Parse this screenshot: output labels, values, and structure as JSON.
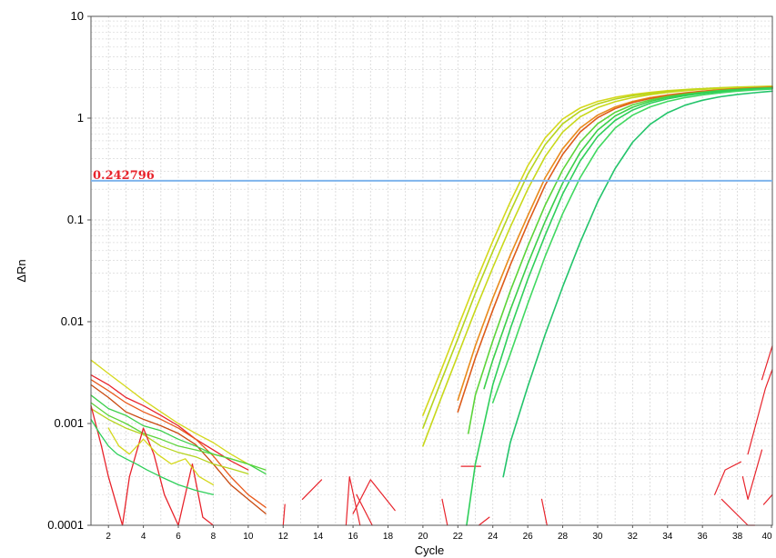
{
  "chart_data": {
    "type": "line",
    "title": "",
    "xlabel": "Cycle",
    "ylabel": "ΔRn",
    "y_scale": "log",
    "ylim": [
      0.0001,
      10
    ],
    "xlim": [
      1,
      40
    ],
    "grid": true,
    "x_ticks": [
      2,
      4,
      6,
      8,
      10,
      12,
      14,
      16,
      18,
      20,
      22,
      24,
      26,
      28,
      30,
      32,
      34,
      36,
      38,
      40
    ],
    "y_ticks": [
      {
        "value": 10,
        "label": "10"
      },
      {
        "value": 1,
        "label": "1"
      },
      {
        "value": 0.1,
        "label": "0.1"
      },
      {
        "value": 0.01,
        "label": "0.01"
      },
      {
        "value": 0.001,
        "label": "0.001"
      },
      {
        "value": 0.0001,
        "label": "0.0001"
      }
    ],
    "threshold": {
      "value": 0.242796,
      "label": "0.242796",
      "color": "#7fb4ec"
    },
    "label_color": "#e8242c",
    "amplification_series": [
      {
        "color": "#d4d81c",
        "x": [
          20,
          21,
          22,
          23,
          24,
          25,
          26,
          27,
          28,
          29,
          30,
          31,
          32,
          33,
          34,
          35,
          36,
          37,
          38,
          39,
          40
        ],
        "y": [
          0.0012,
          0.0032,
          0.0088,
          0.024,
          0.062,
          0.15,
          0.34,
          0.64,
          0.98,
          1.26,
          1.46,
          1.6,
          1.71,
          1.79,
          1.86,
          1.91,
          1.95,
          1.99,
          2.02,
          2.04,
          2.06
        ]
      },
      {
        "color": "#b6d41e",
        "x": [
          20,
          21,
          22,
          23,
          24,
          25,
          26,
          27,
          28,
          29,
          30,
          31,
          32,
          33,
          34,
          35,
          36,
          37,
          38,
          39,
          40
        ],
        "y": [
          0.0009,
          0.0025,
          0.0068,
          0.019,
          0.049,
          0.12,
          0.28,
          0.55,
          0.88,
          1.17,
          1.38,
          1.54,
          1.66,
          1.75,
          1.83,
          1.89,
          1.94,
          1.98,
          2.01,
          2.03,
          2.05
        ]
      },
      {
        "color": "#c8d81a",
        "x": [
          20,
          21,
          22,
          23,
          24,
          25,
          26,
          27,
          28,
          29,
          30,
          31,
          32,
          33,
          34,
          35,
          36,
          37,
          38,
          39,
          40
        ],
        "y": [
          0.0006,
          0.0017,
          0.0047,
          0.013,
          0.034,
          0.085,
          0.2,
          0.42,
          0.73,
          1.03,
          1.27,
          1.45,
          1.59,
          1.7,
          1.79,
          1.86,
          1.92,
          1.96,
          2.0,
          2.02,
          2.04
        ]
      },
      {
        "color": "#e98a1c",
        "x": [
          22,
          23,
          24,
          25,
          26,
          27,
          28,
          29,
          30,
          31,
          32,
          33,
          34,
          35,
          36,
          37,
          38,
          39,
          40
        ],
        "y": [
          0.0017,
          0.0058,
          0.017,
          0.045,
          0.11,
          0.26,
          0.5,
          0.8,
          1.07,
          1.29,
          1.46,
          1.59,
          1.69,
          1.77,
          1.84,
          1.9,
          1.95,
          1.99,
          2.02
        ]
      },
      {
        "color": "#dd5c1a",
        "x": [
          22,
          23,
          24,
          25,
          26,
          27,
          28,
          29,
          30,
          31,
          32,
          33,
          34,
          35,
          36,
          37,
          38,
          39,
          40
        ],
        "y": [
          0.0013,
          0.0044,
          0.013,
          0.036,
          0.092,
          0.22,
          0.44,
          0.73,
          1.01,
          1.24,
          1.42,
          1.56,
          1.67,
          1.76,
          1.83,
          1.89,
          1.94,
          1.98,
          2.01
        ]
      },
      {
        "color": "#5cd43a",
        "x": [
          22.6,
          23,
          24,
          25,
          26,
          27,
          28,
          29,
          30,
          31,
          32,
          33,
          34,
          35,
          36,
          37,
          38,
          39,
          40
        ],
        "y": [
          0.0008,
          0.0019,
          0.0065,
          0.02,
          0.055,
          0.14,
          0.31,
          0.58,
          0.88,
          1.14,
          1.35,
          1.51,
          1.63,
          1.72,
          1.8,
          1.87,
          1.92,
          1.96,
          1.99
        ]
      },
      {
        "color": "#3bcf4a",
        "x": [
          23.5,
          24,
          25,
          26,
          27,
          28,
          29,
          30,
          31,
          32,
          33,
          34,
          35,
          36,
          37,
          38,
          39,
          40
        ],
        "y": [
          0.0022,
          0.0042,
          0.013,
          0.037,
          0.097,
          0.23,
          0.46,
          0.76,
          1.05,
          1.28,
          1.46,
          1.6,
          1.7,
          1.78,
          1.85,
          1.91,
          1.95,
          1.98
        ]
      },
      {
        "color": "#2ecf5a",
        "x": [
          22.5,
          23,
          24,
          25,
          26,
          27,
          28,
          29,
          30,
          31,
          32,
          33,
          34,
          35,
          36,
          37,
          38,
          39,
          40
        ],
        "y": [
          0.0001,
          0.0004,
          0.0024,
          0.0085,
          0.026,
          0.071,
          0.18,
          0.38,
          0.66,
          0.95,
          1.2,
          1.4,
          1.55,
          1.66,
          1.75,
          1.82,
          1.88,
          1.93,
          1.96
        ]
      },
      {
        "color": "#40d860",
        "x": [
          24,
          25,
          26,
          27,
          28,
          29,
          30,
          31,
          32,
          33,
          34,
          35,
          36,
          37,
          38,
          39,
          40
        ],
        "y": [
          0.0016,
          0.0048,
          0.015,
          0.044,
          0.115,
          0.26,
          0.5,
          0.8,
          1.07,
          1.29,
          1.46,
          1.59,
          1.69,
          1.77,
          1.84,
          1.89,
          1.93
        ]
      },
      {
        "color": "#22c46a",
        "x": [
          24.6,
          25,
          26,
          27,
          28,
          29,
          30,
          31,
          32,
          33,
          34,
          35,
          36,
          37,
          38,
          39,
          40
        ],
        "y": [
          0.0003,
          0.00065,
          0.0023,
          0.0075,
          0.022,
          0.06,
          0.15,
          0.32,
          0.58,
          0.87,
          1.13,
          1.34,
          1.5,
          1.62,
          1.71,
          1.78,
          1.84
        ]
      }
    ],
    "noise_series": [
      {
        "color": "#d4d81c",
        "x": [
          1,
          2,
          3,
          4,
          5,
          6,
          7,
          8,
          9,
          10
        ],
        "y": [
          0.0042,
          0.0031,
          0.0023,
          0.0017,
          0.0013,
          0.001,
          0.0008,
          0.00065,
          0.0005,
          0.0004
        ]
      },
      {
        "color": "#e8242c",
        "x": [
          1,
          2,
          3,
          4,
          5,
          6,
          7,
          8,
          9,
          10
        ],
        "y": [
          0.003,
          0.0024,
          0.0018,
          0.0015,
          0.0012,
          0.00095,
          0.0007,
          0.00055,
          0.00043,
          0.00035
        ]
      },
      {
        "color": "#e85a1c",
        "x": [
          1,
          2,
          3,
          4,
          5,
          6,
          7,
          8,
          9,
          10,
          11
        ],
        "y": [
          0.0027,
          0.0021,
          0.0016,
          0.0013,
          0.0011,
          0.0009,
          0.0007,
          0.00048,
          0.0003,
          0.0002,
          0.00015
        ]
      },
      {
        "color": "#c84a10",
        "x": [
          1,
          2,
          3,
          4,
          5,
          6,
          7,
          8,
          9,
          10,
          11
        ],
        "y": [
          0.0024,
          0.0018,
          0.0013,
          0.0011,
          0.00095,
          0.0008,
          0.00062,
          0.0004,
          0.00025,
          0.00018,
          0.00013
        ]
      },
      {
        "color": "#3bcf4a",
        "x": [
          1,
          2,
          3,
          4,
          5,
          6,
          7,
          8,
          9,
          10,
          11
        ],
        "y": [
          0.0019,
          0.0014,
          0.0012,
          0.00095,
          0.00085,
          0.0007,
          0.0006,
          0.0005,
          0.00045,
          0.0004,
          0.00032
        ]
      },
      {
        "color": "#5cd43a",
        "x": [
          1,
          2,
          3,
          4,
          5,
          6,
          7,
          8,
          9,
          10,
          11
        ],
        "y": [
          0.0016,
          0.0012,
          0.001,
          0.0008,
          0.0007,
          0.0006,
          0.00055,
          0.0005,
          0.00045,
          0.0004,
          0.00035
        ]
      },
      {
        "color": "#b6d41e",
        "x": [
          1,
          2,
          3,
          4,
          5,
          6,
          7,
          8,
          9,
          10
        ],
        "y": [
          0.0014,
          0.0011,
          0.0009,
          0.00078,
          0.0006,
          0.00052,
          0.00047,
          0.0004,
          0.00036,
          0.00032
        ]
      },
      {
        "color": "#e8242c",
        "x": [
          1,
          1.6,
          2,
          2.8,
          3.2,
          4,
          4.6,
          5.2,
          6,
          6.8,
          7.4,
          8
        ],
        "y": [
          0.0015,
          0.0006,
          0.0003,
          0.0001,
          0.0003,
          0.0009,
          0.0005,
          0.0002,
          0.0001,
          0.0004,
          0.00012,
          0.0001
        ]
      },
      {
        "color": "#2ecf5a",
        "x": [
          1,
          1.5,
          2,
          2.5,
          3,
          3.6,
          4.2,
          5,
          6,
          7,
          8
        ],
        "y": [
          0.0011,
          0.0008,
          0.0006,
          0.0005,
          0.00045,
          0.0004,
          0.00035,
          0.0003,
          0.00025,
          0.00022,
          0.0002
        ]
      },
      {
        "color": "#d4d81c",
        "x": [
          2,
          2.6,
          3.2,
          4,
          4.8,
          5.6,
          6.4,
          7.2,
          8
        ],
        "y": [
          0.0009,
          0.0006,
          0.0005,
          0.0007,
          0.0005,
          0.0004,
          0.00045,
          0.0003,
          0.00025
        ]
      }
    ],
    "sparse_fragments": [
      {
        "color": "#e8242c",
        "x": [
          12,
          12.1
        ],
        "y": [
          0.0001,
          0.00016
        ]
      },
      {
        "color": "#e8242c",
        "x": [
          13.1,
          14.2
        ],
        "y": [
          0.00018,
          0.00028
        ]
      },
      {
        "color": "#e8242c",
        "x": [
          15.6,
          15.8,
          16.4
        ],
        "y": [
          0.0001,
          0.0003,
          0.0001
        ]
      },
      {
        "color": "#e8242c",
        "x": [
          16,
          17,
          18.4
        ],
        "y": [
          0.00013,
          0.00028,
          0.00014
        ]
      },
      {
        "color": "#e8242c",
        "x": [
          16.2,
          17.1
        ],
        "y": [
          0.0002,
          0.0001
        ]
      },
      {
        "color": "#e8242c",
        "x": [
          21.1,
          21.4
        ],
        "y": [
          0.00018,
          0.0001
        ]
      },
      {
        "color": "#e8242c",
        "x": [
          22.2,
          23.3
        ],
        "y": [
          0.00038,
          0.00038
        ]
      },
      {
        "color": "#e8242c",
        "x": [
          23.2,
          23.8
        ],
        "y": [
          0.0001,
          0.00012
        ]
      },
      {
        "color": "#e8242c",
        "x": [
          26.8,
          27.1
        ],
        "y": [
          0.00018,
          0.0001
        ]
      },
      {
        "color": "#e8242c",
        "x": [
          36.7,
          37.3,
          38.2
        ],
        "y": [
          0.0002,
          0.00035,
          0.00042
        ]
      },
      {
        "color": "#e8242c",
        "x": [
          37.1,
          38.6,
          39
        ],
        "y": [
          0.00018,
          0.0001,
          0.0001
        ]
      },
      {
        "color": "#e8242c",
        "x": [
          38.3,
          38.6,
          39.4
        ],
        "y": [
          0.0003,
          0.00018,
          0.00055
        ]
      },
      {
        "color": "#e8242c",
        "x": [
          39.5,
          40
        ],
        "y": [
          0.00016,
          0.0002
        ]
      },
      {
        "color": "#e8242c",
        "x": [
          38.6,
          39.6,
          40
        ],
        "y": [
          0.0005,
          0.0022,
          0.0034
        ]
      },
      {
        "color": "#e8242c",
        "x": [
          39.4,
          40
        ],
        "y": [
          0.0027,
          0.0058
        ]
      }
    ]
  }
}
